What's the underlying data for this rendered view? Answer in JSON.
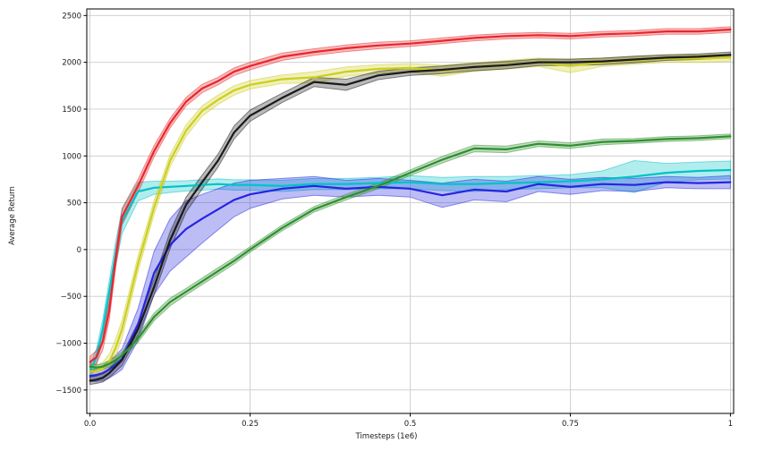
{
  "chart_data": {
    "type": "line",
    "title": "",
    "xlabel": "Timesteps (1e6)",
    "ylabel": "Average Return",
    "xlim": [
      -0.005,
      1.005
    ],
    "ylim": [
      -1750,
      2570
    ],
    "grid": true,
    "legend": "none",
    "background": "#ffffff",
    "grid_color": "#cccccc",
    "xticks": [
      {
        "v": 0.0,
        "label": "0.0"
      },
      {
        "v": 0.25,
        "label": "0.25"
      },
      {
        "v": 0.5,
        "label": "0.5"
      },
      {
        "v": 0.75,
        "label": "0.75"
      },
      {
        "v": 1.0,
        "label": "1"
      }
    ],
    "yticks": [
      {
        "v": 2500,
        "label": "2500"
      },
      {
        "v": 2000,
        "label": "2000"
      },
      {
        "v": 1500,
        "label": "1500"
      },
      {
        "v": 1000,
        "label": "1000"
      },
      {
        "v": 500,
        "label": "500"
      },
      {
        "v": 0,
        "label": "0"
      },
      {
        "v": -500,
        "label": "−500"
      },
      {
        "v": -1000,
        "label": "−1000"
      },
      {
        "v": -1500,
        "label": "−1500"
      }
    ],
    "x": [
      0,
      0.01,
      0.02,
      0.03,
      0.04,
      0.05,
      0.075,
      0.1,
      0.125,
      0.15,
      0.175,
      0.2,
      0.225,
      0.25,
      0.3,
      0.35,
      0.4,
      0.45,
      0.5,
      0.55,
      0.6,
      0.65,
      0.7,
      0.75,
      0.8,
      0.85,
      0.9,
      0.95,
      1.0
    ],
    "series": [
      {
        "name": "cyan-curve",
        "color": "#00c2c7",
        "values": [
          -1300,
          -1150,
          -850,
          -450,
          -50,
          300,
          620,
          660,
          670,
          680,
          690,
          700,
          690,
          690,
          680,
          700,
          700,
          710,
          720,
          700,
          700,
          710,
          720,
          730,
          750,
          780,
          820,
          840,
          850
        ],
        "band": [
          70,
          85,
          105,
          120,
          130,
          130,
          100,
          70,
          60,
          55,
          55,
          55,
          55,
          55,
          60,
          60,
          60,
          60,
          70,
          70,
          80,
          70,
          70,
          70,
          90,
          170,
          100,
          95,
          95
        ]
      },
      {
        "name": "blue-curve",
        "color": "#2525e0",
        "values": [
          -1350,
          -1340,
          -1320,
          -1280,
          -1230,
          -1170,
          -800,
          -250,
          50,
          220,
          330,
          430,
          530,
          590,
          650,
          680,
          650,
          670,
          650,
          580,
          640,
          620,
          700,
          670,
          700,
          690,
          720,
          710,
          720
        ],
        "band": [
          60,
          70,
          80,
          90,
          100,
          110,
          170,
          230,
          280,
          300,
          260,
          220,
          180,
          150,
          110,
          100,
          90,
          90,
          90,
          130,
          110,
          110,
          80,
          80,
          70,
          70,
          60,
          60,
          70
        ]
      },
      {
        "name": "yellow-curve",
        "color": "#ccce1e",
        "values": [
          -1300,
          -1295,
          -1270,
          -1200,
          -1050,
          -850,
          -150,
          450,
          950,
          1270,
          1480,
          1600,
          1700,
          1760,
          1820,
          1840,
          1900,
          1930,
          1940,
          1910,
          1950,
          1975,
          2000,
          1960,
          2000,
          2020,
          2040,
          2040,
          2050
        ],
        "band": [
          50,
          55,
          65,
          85,
          95,
          95,
          85,
          75,
          65,
          60,
          55,
          50,
          50,
          45,
          45,
          60,
          50,
          45,
          45,
          60,
          45,
          45,
          45,
          70,
          45,
          40,
          40,
          40,
          40
        ]
      },
      {
        "name": "black-curve",
        "color": "#1a1a1a",
        "values": [
          -1400,
          -1390,
          -1370,
          -1320,
          -1250,
          -1180,
          -850,
          -400,
          100,
          480,
          720,
          950,
          1250,
          1430,
          1620,
          1790,
          1760,
          1860,
          1900,
          1920,
          1950,
          1970,
          2000,
          2000,
          2010,
          2030,
          2050,
          2060,
          2080
        ],
        "band": [
          40,
          40,
          45,
          50,
          55,
          60,
          70,
          85,
          90,
          80,
          75,
          70,
          70,
          60,
          50,
          50,
          60,
          45,
          40,
          40,
          40,
          40,
          35,
          35,
          35,
          35,
          30,
          30,
          30
        ]
      },
      {
        "name": "green-curve",
        "color": "#2f8f2f",
        "values": [
          -1250,
          -1260,
          -1250,
          -1220,
          -1180,
          -1130,
          -950,
          -720,
          -560,
          -450,
          -340,
          -230,
          -120,
          0,
          230,
          430,
          560,
          680,
          820,
          960,
          1080,
          1070,
          1130,
          1110,
          1150,
          1160,
          1180,
          1190,
          1210
        ],
        "band": [
          30,
          30,
          30,
          35,
          35,
          35,
          40,
          40,
          40,
          35,
          35,
          35,
          35,
          30,
          30,
          30,
          30,
          30,
          30,
          35,
          35,
          35,
          30,
          30,
          30,
          25,
          25,
          25,
          25
        ]
      },
      {
        "name": "red-curve",
        "color": "#e8272c",
        "values": [
          -1200,
          -1150,
          -980,
          -650,
          -100,
          350,
          680,
          1050,
          1350,
          1580,
          1720,
          1800,
          1900,
          1960,
          2060,
          2110,
          2150,
          2180,
          2200,
          2230,
          2260,
          2280,
          2290,
          2280,
          2300,
          2310,
          2330,
          2330,
          2350
        ],
        "band": [
          60,
          70,
          90,
          100,
          100,
          90,
          70,
          60,
          50,
          45,
          45,
          40,
          40,
          40,
          40,
          35,
          35,
          35,
          30,
          30,
          30,
          30,
          30,
          30,
          30,
          30,
          30,
          30,
          30
        ]
      }
    ]
  }
}
